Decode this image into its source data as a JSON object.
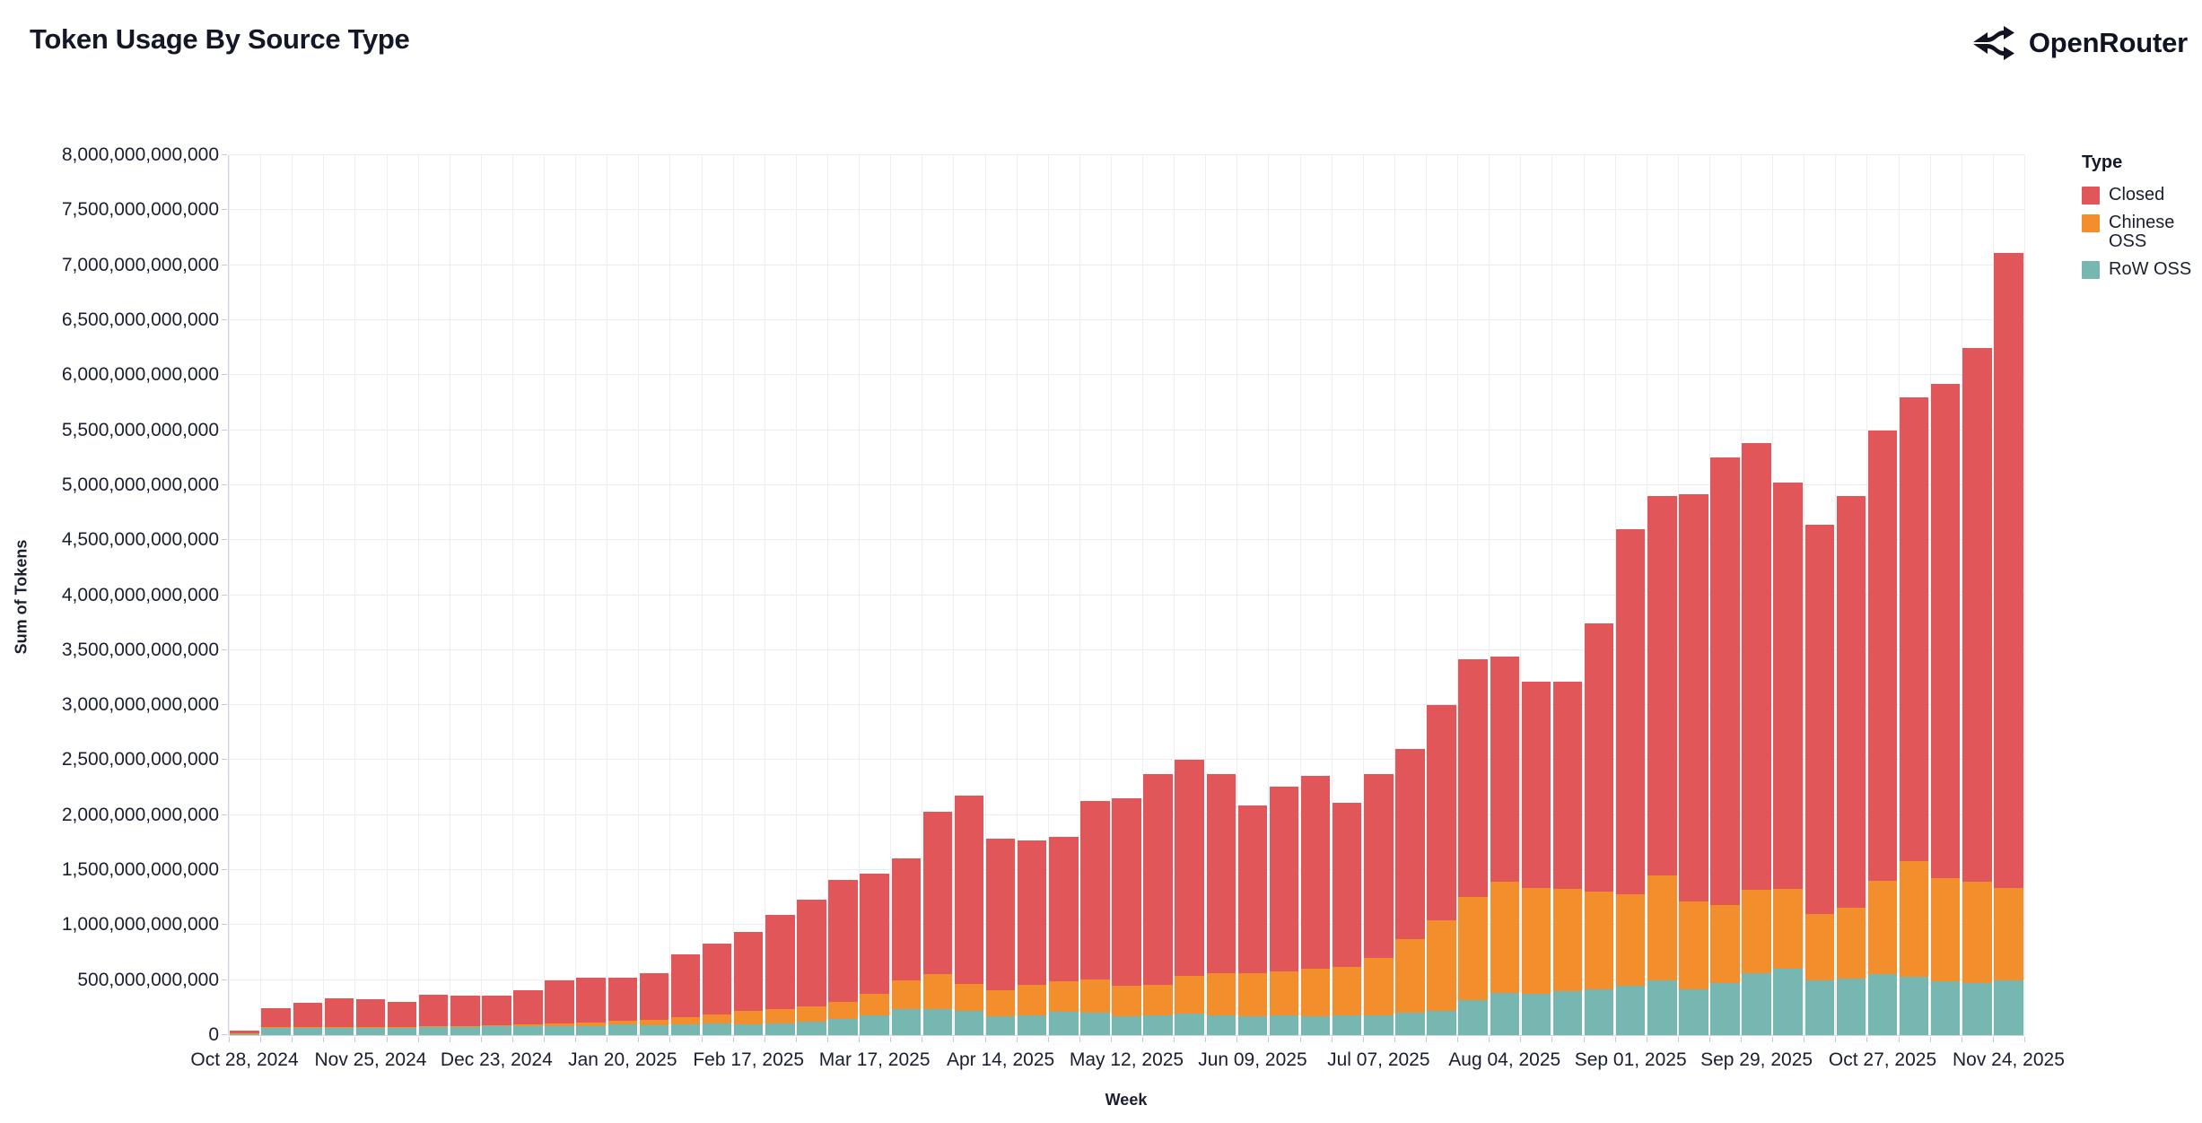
{
  "header": {
    "title": "Token Usage By Source Type",
    "brand": "OpenRouter"
  },
  "axes": {
    "y_title": "Sum of Tokens",
    "x_title": "Week",
    "y_ticks": [
      "0",
      "500,000,000,000",
      "1,000,000,000,000",
      "1,500,000,000,000",
      "2,000,000,000,000",
      "2,500,000,000,000",
      "3,000,000,000,000",
      "3,500,000,000,000",
      "4,000,000,000,000",
      "4,500,000,000,000",
      "5,000,000,000,000",
      "5,500,000,000,000",
      "6,000,000,000,000",
      "6,500,000,000,000",
      "7,000,000,000,000",
      "7,500,000,000,000",
      "8,000,000,000,000"
    ],
    "x_tick_every": 4
  },
  "legend": {
    "title": "Type",
    "items": [
      {
        "label": "Closed",
        "color": "#e15759"
      },
      {
        "label": "Chinese OSS",
        "color": "#f28e2b"
      },
      {
        "label": "RoW OSS",
        "color": "#76b7b2"
      }
    ]
  },
  "chart_data": {
    "type": "bar",
    "stacked": true,
    "title": "Token Usage By Source Type",
    "xlabel": "Week",
    "ylabel": "Sum of Tokens",
    "value_unit": "billions_of_tokens",
    "ylim_billions": [
      0,
      8000
    ],
    "grid": true,
    "legend_position": "right",
    "x": [
      "Oct 28, 2024",
      "Nov 04, 2024",
      "Nov 11, 2024",
      "Nov 18, 2024",
      "Nov 25, 2024",
      "Dec 02, 2024",
      "Dec 09, 2024",
      "Dec 16, 2024",
      "Dec 23, 2024",
      "Dec 30, 2024",
      "Jan 06, 2025",
      "Jan 13, 2025",
      "Jan 20, 2025",
      "Jan 27, 2025",
      "Feb 03, 2025",
      "Feb 10, 2025",
      "Feb 17, 2025",
      "Feb 24, 2025",
      "Mar 03, 2025",
      "Mar 10, 2025",
      "Mar 17, 2025",
      "Mar 24, 2025",
      "Mar 31, 2025",
      "Apr 07, 2025",
      "Apr 14, 2025",
      "Apr 21, 2025",
      "Apr 28, 2025",
      "May 05, 2025",
      "May 12, 2025",
      "May 19, 2025",
      "May 26, 2025",
      "Jun 02, 2025",
      "Jun 09, 2025",
      "Jun 16, 2025",
      "Jun 23, 2025",
      "Jun 30, 2025",
      "Jul 07, 2025",
      "Jul 14, 2025",
      "Jul 21, 2025",
      "Jul 28, 2025",
      "Aug 04, 2025",
      "Aug 11, 2025",
      "Aug 18, 2025",
      "Aug 25, 2025",
      "Sep 01, 2025",
      "Sep 08, 2025",
      "Sep 15, 2025",
      "Sep 22, 2025",
      "Sep 29, 2025",
      "Oct 06, 2025",
      "Oct 13, 2025",
      "Oct 20, 2025",
      "Oct 27, 2025",
      "Nov 03, 2025",
      "Nov 10, 2025",
      "Nov 17, 2025",
      "Nov 24, 2025"
    ],
    "x_axis_labels": [
      "Oct 28, 2024",
      "Nov 25, 2024",
      "Dec 23, 2024",
      "Jan 20, 2025",
      "Feb 17, 2025",
      "Mar 17, 2025",
      "Apr 14, 2025",
      "May 12, 2025",
      "Jun 09, 2025",
      "Jul 07, 2025",
      "Aug 04, 2025",
      "Sep 01, 2025",
      "Sep 29, 2025",
      "Oct 27, 2025",
      "Nov 24, 2025"
    ],
    "series": [
      {
        "name": "RoW OSS",
        "color": "#76b7b2",
        "values": [
          12,
          65,
          65,
          68,
          68,
          65,
          70,
          75,
          80,
          85,
          85,
          85,
          95,
          92,
          100,
          106,
          98,
          106,
          122,
          149,
          179,
          236,
          236,
          217,
          168,
          182,
          209,
          201,
          168,
          177,
          196,
          182,
          168,
          182,
          174,
          182,
          182,
          201,
          220,
          318,
          380,
          378,
          399,
          413,
          446,
          494,
          413,
          473,
          562,
          603,
          500,
          513,
          554,
          527,
          489,
          475,
          494
        ]
      },
      {
        "name": "Chinese OSS",
        "color": "#f28e2b",
        "values": [
          3,
          5,
          6,
          7,
          7,
          8,
          10,
          10,
          12,
          15,
          25,
          30,
          35,
          50,
          63,
          80,
          125,
          128,
          142,
          155,
          193,
          258,
          321,
          250,
          237,
          272,
          277,
          307,
          283,
          282,
          339,
          380,
          394,
          394,
          429,
          435,
          516,
          674,
          820,
          937,
          1017,
          959,
          930,
          891,
          837,
          956,
          802,
          706,
          761,
          726,
          598,
          647,
          848,
          1054,
          935,
          916,
          843
        ]
      },
      {
        "name": "Closed",
        "color": "#e15759",
        "values": [
          25,
          175,
          224,
          260,
          255,
          232,
          285,
          275,
          263,
          305,
          385,
          405,
          395,
          423,
          572,
          644,
          717,
          856,
          971,
          1106,
          1093,
          1116,
          1473,
          1708,
          1385,
          1316,
          1319,
          1622,
          1699,
          1911,
          1965,
          1808,
          1528,
          1684,
          1752,
          1493,
          1672,
          1725,
          1960,
          2165,
          2043,
          1873,
          1881,
          2436,
          3317,
          3450,
          3705,
          4071,
          4057,
          3691,
          3542,
          3740,
          4098,
          4219,
          4496,
          4859,
          5773
        ]
      }
    ]
  }
}
